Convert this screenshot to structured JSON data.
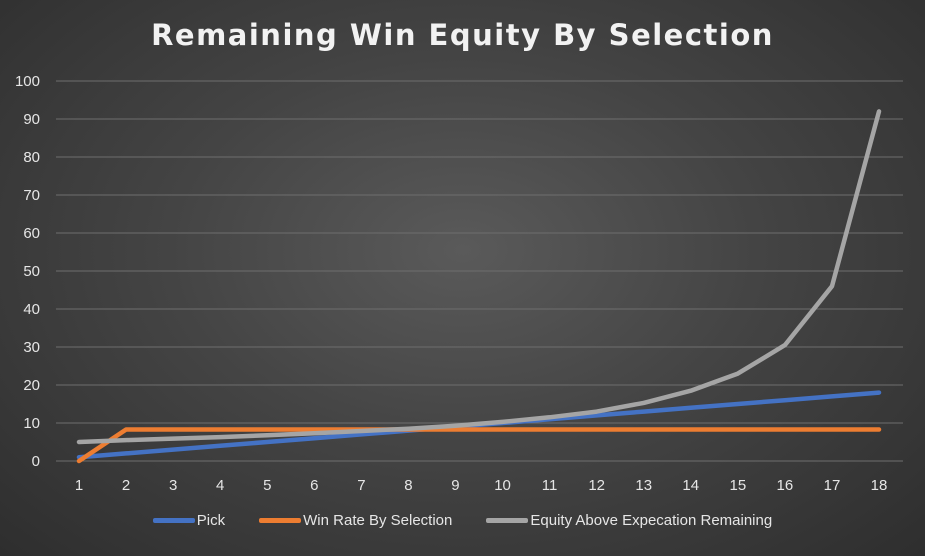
{
  "chart_data": {
    "type": "line",
    "title": "Remaining Win Equity By Selection",
    "xlabel": "",
    "ylabel": "",
    "categories": [
      "1",
      "2",
      "3",
      "4",
      "5",
      "6",
      "7",
      "8",
      "9",
      "10",
      "11",
      "12",
      "13",
      "14",
      "15",
      "16",
      "17",
      "18"
    ],
    "y_ticks": [
      "0",
      "10",
      "20",
      "30",
      "40",
      "50",
      "60",
      "70",
      "80",
      "90",
      "100"
    ],
    "ylim": [
      0,
      100
    ],
    "grid": true,
    "legend_position": "bottom",
    "series": [
      {
        "name": "Pick",
        "color": "#4472c4",
        "values": [
          1,
          2,
          3,
          4,
          5,
          6,
          7,
          8,
          9,
          10,
          11,
          12,
          13,
          14,
          15,
          16,
          17,
          18
        ]
      },
      {
        "name": "Win Rate By Selection",
        "color": "#ed7d31",
        "values": [
          0,
          8.3,
          8.3,
          8.3,
          8.3,
          8.3,
          8.3,
          8.3,
          8.3,
          8.3,
          8.3,
          8.3,
          8.3,
          8.3,
          8.3,
          8.3,
          8.3,
          8.3
        ]
      },
      {
        "name": "Equity Above Expecation Remaining",
        "color": "#a5a5a5",
        "values": [
          5,
          5.5,
          5.9,
          6.3,
          6.8,
          7.3,
          7.9,
          8.5,
          9.3,
          10.3,
          11.5,
          13,
          15.3,
          18.5,
          23,
          30.5,
          46,
          92
        ]
      }
    ]
  }
}
